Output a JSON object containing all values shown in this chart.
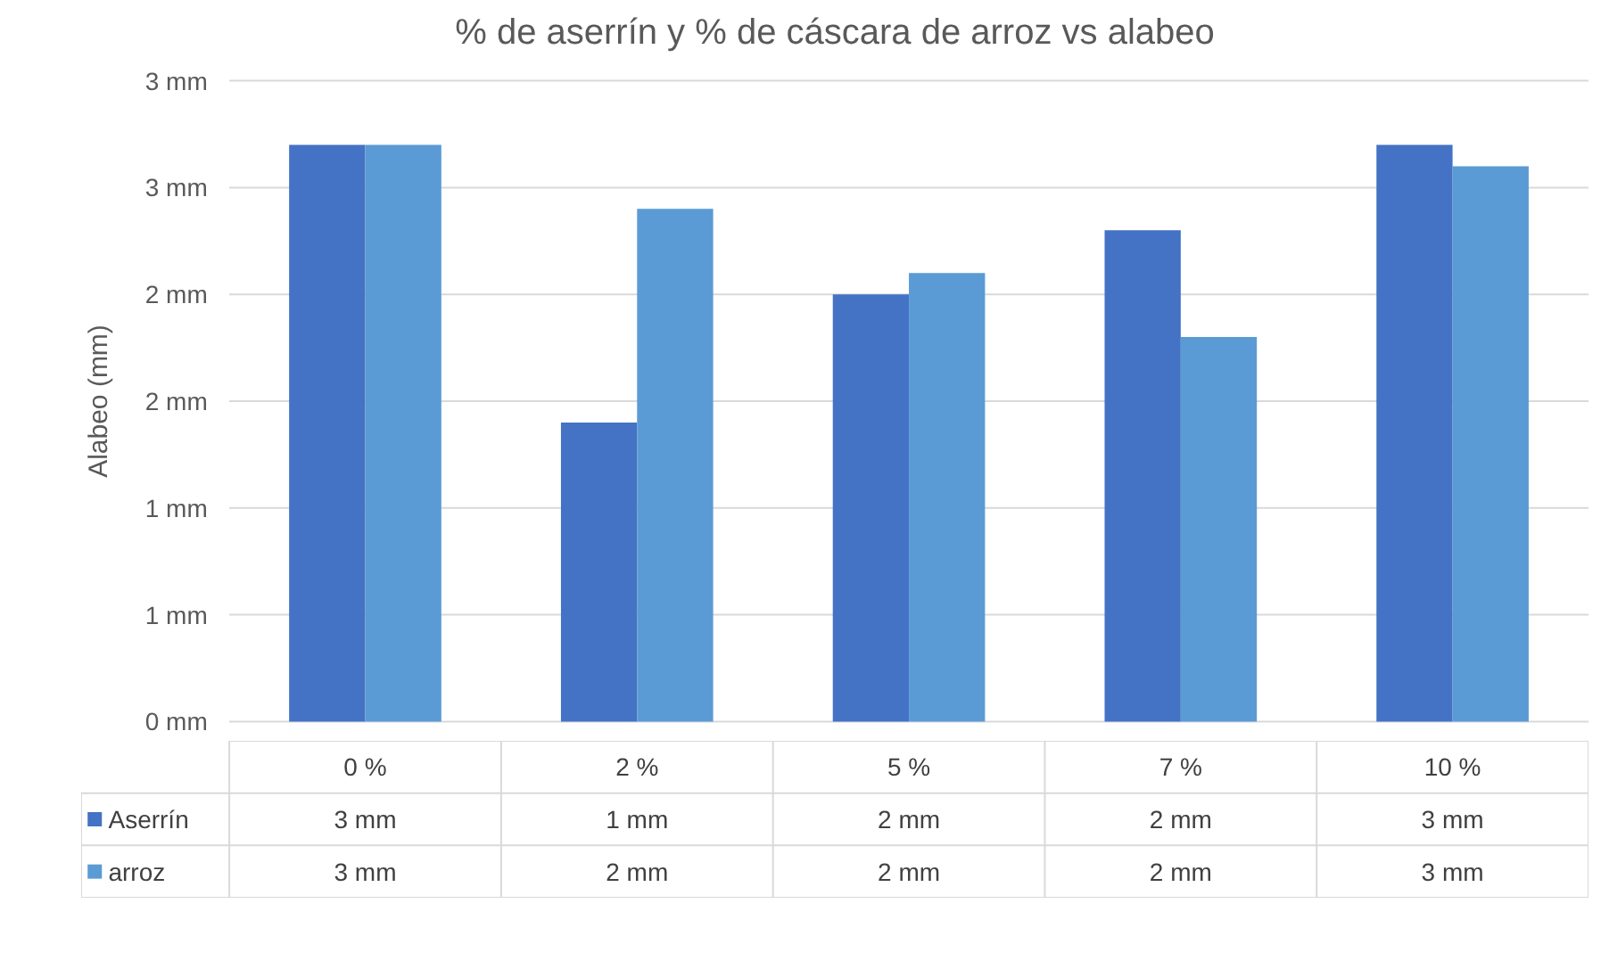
{
  "chart_data": {
    "type": "bar",
    "title": "% de aserrín y % de cáscara de arroz vs alabeo",
    "ylabel": "Alabeo (mm)",
    "categories": [
      "0 %",
      "2 %",
      "5 %",
      "7 %",
      "10 %"
    ],
    "series": [
      {
        "name": "Aserrín",
        "color": "#4472c4",
        "values": [
          2.7,
          1.4,
          2.0,
          2.3,
          2.7
        ],
        "value_labels": [
          "3 mm",
          "1 mm",
          "2 mm",
          "2 mm",
          "3 mm"
        ]
      },
      {
        "name": "arroz",
        "color": "#5b9bd5",
        "values": [
          2.7,
          2.4,
          2.1,
          1.8,
          2.6
        ],
        "value_labels": [
          "3 mm",
          "2 mm",
          "2 mm",
          "2 mm",
          "3 mm"
        ]
      }
    ],
    "ylim": [
      0,
      3
    ],
    "yticks": [
      {
        "value": 0,
        "label": "0 mm"
      },
      {
        "value": 0.5,
        "label": "1 mm"
      },
      {
        "value": 1,
        "label": "1 mm"
      },
      {
        "value": 1.5,
        "label": "2 mm"
      },
      {
        "value": 2,
        "label": "2 mm"
      },
      {
        "value": 2.5,
        "label": "3 mm"
      },
      {
        "value": 3,
        "label": "3 mm"
      }
    ],
    "grid": "y",
    "legend": "bottom"
  }
}
